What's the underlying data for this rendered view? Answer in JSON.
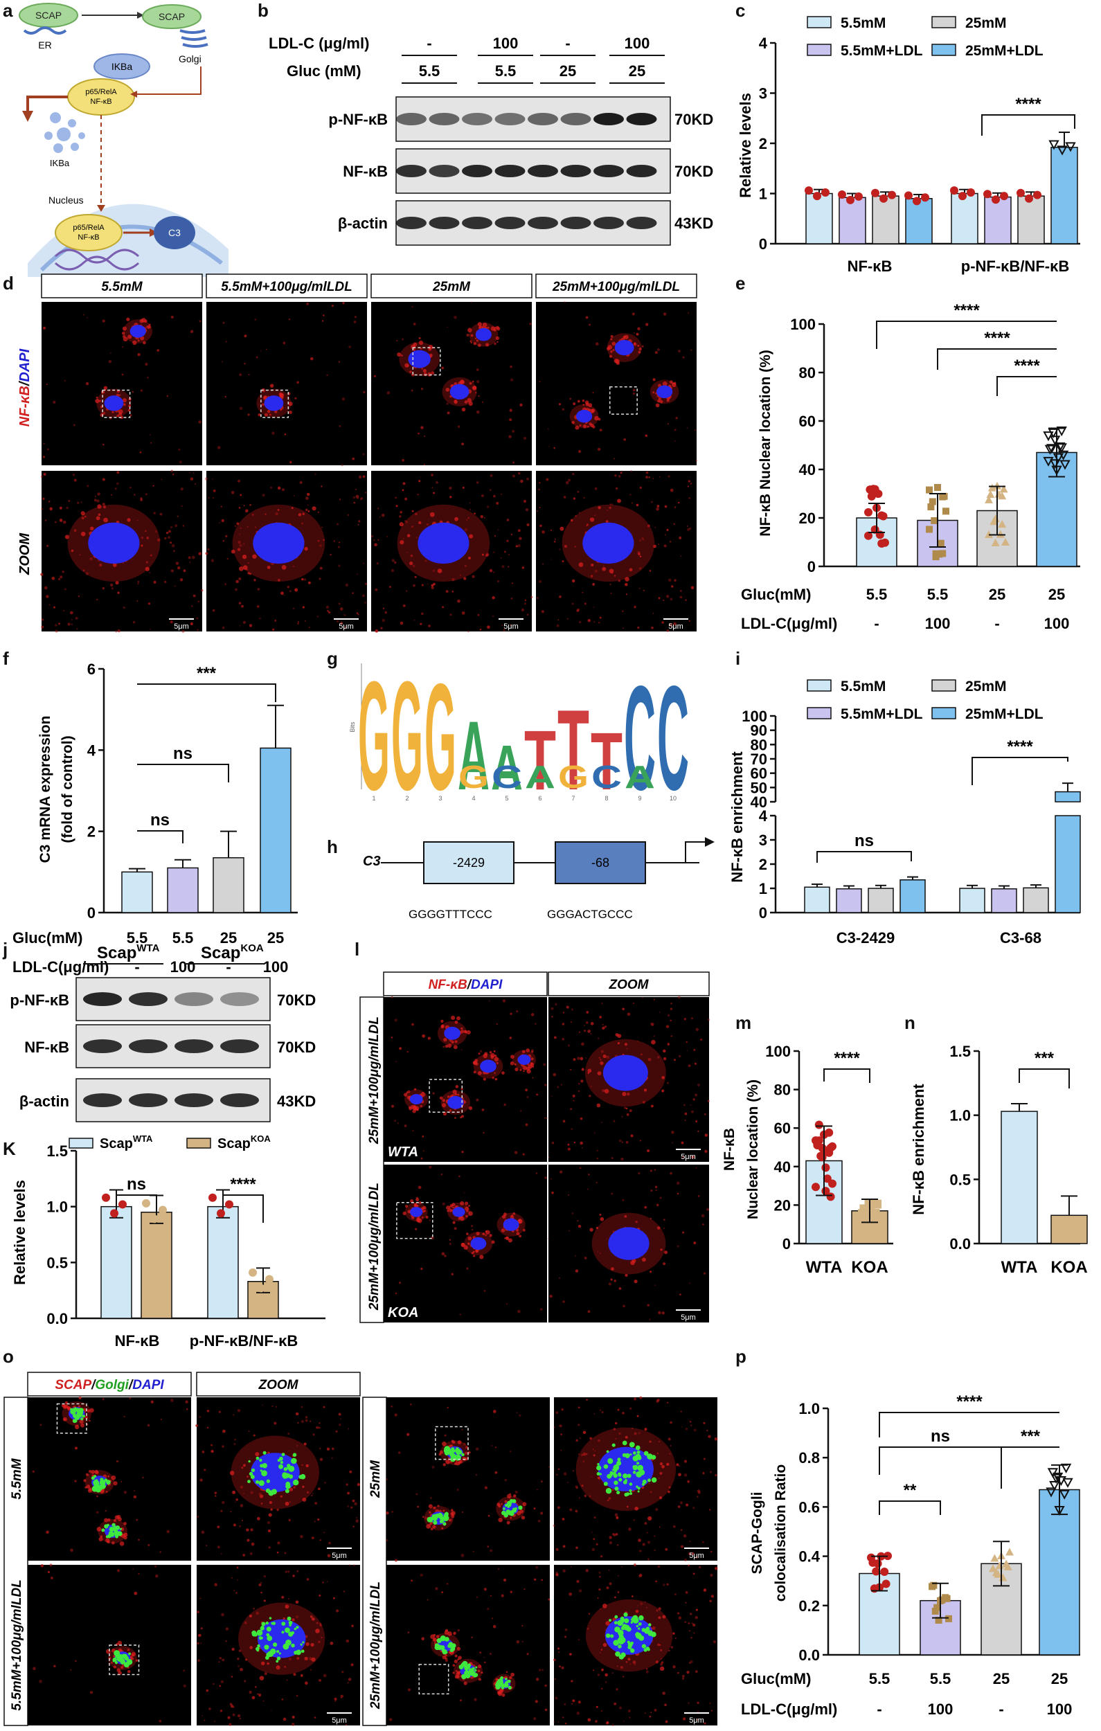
{
  "panel_letters": {
    "a": "a",
    "b": "b",
    "c": "c",
    "d": "d",
    "e": "e",
    "f": "f",
    "g": "g",
    "h": "h",
    "i": "i",
    "j": "j",
    "K": "K",
    "l": "l",
    "m": "m",
    "n": "n",
    "o": "o",
    "p": "p"
  },
  "a": {
    "scap1": "SCAP",
    "scap2": "SCAP",
    "er": "ER",
    "golgi": "Golgi",
    "ikba_top": "IKBa",
    "complex_top": "p65/RelA\nNF-κB",
    "ikba_free": "IKBa",
    "nucleus": "Nucleus",
    "complex_nuc": "p65/RelA\nNF-κB",
    "c3": "C3"
  },
  "b": {
    "row1_label": "LDL-C (μg/ml)",
    "row2_label": "Gluc (mM)",
    "ldl": [
      "-",
      "100",
      "-",
      "100"
    ],
    "gluc": [
      "5.5",
      "5.5",
      "25",
      "25"
    ],
    "blots": [
      "p-NF-κB",
      "NF-κB",
      "β-actin"
    ],
    "sizes": [
      "70KD",
      "70KD",
      "43KD"
    ]
  },
  "c": {
    "ylabel": "Relative levels",
    "legend": [
      "5.5mM",
      "25mM",
      "5.5mM+LDL",
      "25mM+LDL"
    ],
    "groups": [
      "NF-κB",
      "p-NF-κB/NF-κB"
    ],
    "sig": "****",
    "yticks": [
      "0",
      "1",
      "2",
      "3",
      "4"
    ]
  },
  "d": {
    "cols": [
      "5.5mM",
      "5.5mM+100μg/mlLDL",
      "25mM",
      "25mM+100μg/mlLDL"
    ],
    "row1_label_red": "NF-κB",
    "row1_label_blue": "DAPI",
    "row2_label": "ZOOM",
    "scale": "5μm"
  },
  "e": {
    "ylabel": "NF-κB Nuclear location (%)",
    "yticks": [
      "0",
      "20",
      "40",
      "60",
      "80",
      "100"
    ],
    "gluc_label": "Gluc(mM)",
    "ldl_label": "LDL-C(μg/ml)",
    "gluc": [
      "5.5",
      "5.5",
      "25",
      "25"
    ],
    "ldl": [
      "-",
      "100",
      "-",
      "100"
    ],
    "sig": [
      "****",
      "****",
      "****"
    ]
  },
  "f": {
    "ylabel1": "C3 mRNA expression",
    "ylabel2": "(fold of control)",
    "yticks": [
      "0",
      "2",
      "4",
      "6"
    ],
    "gluc_label": "Gluc(mM)",
    "ldl_label": "LDL-C(μg/ml)",
    "gluc": [
      "5.5",
      "5.5",
      "25",
      "25"
    ],
    "ldl": [
      "-",
      "100",
      "-",
      "100"
    ],
    "sig": [
      "ns",
      "ns",
      "***"
    ]
  },
  "g": {
    "motif": [
      "G",
      "G",
      "G",
      "A",
      "A",
      "T",
      "T",
      "T",
      "C",
      "C"
    ],
    "sub": [
      "G",
      "C",
      "A",
      "G",
      "C",
      "A"
    ],
    "bits": "Bits",
    "positions": [
      "1",
      "2",
      "3",
      "4",
      "5",
      "6",
      "7",
      "8",
      "9",
      "10"
    ]
  },
  "h": {
    "gene": "C3",
    "site1": "-2429",
    "site2": "-68",
    "seq1": "GGGGTTTCCC",
    "seq2": "GGGACTGCCC"
  },
  "i": {
    "ylabel": "NF-κB enrichment",
    "legend": [
      "5.5mM",
      "25mM",
      "5.5mM+LDL",
      "25mM+LDL"
    ],
    "groups": [
      "C3-2429",
      "C3-68"
    ],
    "sig": [
      "ns",
      "****"
    ],
    "yticks_low": [
      "0",
      "1",
      "2",
      "3",
      "4"
    ],
    "yticks_high": [
      "40",
      "50",
      "60",
      "70",
      "80",
      "90",
      "100"
    ]
  },
  "j": {
    "group1": "Scap",
    "group1_sup": "WTA",
    "group2": "Scap",
    "group2_sup": "KOA",
    "blots": [
      "p-NF-κB",
      "NF-κB",
      "β-actin"
    ],
    "sizes": [
      "70KD",
      "70KD",
      "43KD"
    ]
  },
  "K": {
    "legend": [
      {
        "name": "Scap",
        "sup": "WTA"
      },
      {
        "name": "Scap",
        "sup": "KOA"
      }
    ],
    "ylabel": "Relative levels",
    "groups": [
      "NF-κB",
      "p-NF-κB/NF-κB"
    ],
    "sig": [
      "ns",
      "****"
    ],
    "yticks": [
      "0.0",
      "0.5",
      "1.0",
      "1.5"
    ]
  },
  "l": {
    "col1_red": "NF-κB",
    "col1_blue": "DAPI",
    "col2": "ZOOM",
    "row_label": "25mM+100μg/mlLDL",
    "row1_tag": "WTA",
    "row2_tag": "KOA",
    "scale": "5μm"
  },
  "m": {
    "ylabel1": "NF-κB",
    "ylabel2": "Nuclear location (%)",
    "yticks": [
      "0",
      "20",
      "40",
      "60",
      "80",
      "100"
    ],
    "cats": [
      "WTA",
      "KOA"
    ],
    "sig": "****"
  },
  "n": {
    "ylabel": "NF-κB enrichment",
    "yticks": [
      "0.0",
      "0.5",
      "1.0",
      "1.5"
    ],
    "cats": [
      "WTA",
      "KOA"
    ],
    "sig": "***"
  },
  "o": {
    "header_red": "SCAP",
    "header_green": "Golgi",
    "header_blue": "DAPI",
    "zoom": "ZOOM",
    "rows": [
      "5.5mM",
      "5.5mM+100μg/mlLDL"
    ],
    "rows_right": [
      "25mM",
      "25mM+100μg/mlLDL"
    ],
    "scale": "5μm"
  },
  "p": {
    "ylabel1": "SCAP-Gogli",
    "ylabel2": "colocalisation Ratio",
    "yticks": [
      "0.0",
      "0.2",
      "0.4",
      "0.6",
      "0.8",
      "1.0"
    ],
    "gluc_label": "Gluc(mM)",
    "ldl_label": "LDL-C(μg/ml)",
    "gluc": [
      "5.5",
      "5.5",
      "25",
      "25"
    ],
    "ldl": [
      "-",
      "100",
      "-",
      "100"
    ],
    "sig": [
      "****",
      "ns",
      "***",
      "**"
    ]
  },
  "colors": {
    "c1": "#cfe8f5",
    "c2": "#c9c3f0",
    "c3": "#d4d4d4",
    "c4": "#7ec0ee",
    "red": "#c0201e",
    "tan": "#d4b483",
    "micro_bg": "#000000"
  },
  "chart_data": [
    {
      "type": "bar",
      "panel": "c",
      "categories": [
        "NF-κB",
        "p-NF-κB/NF-κB"
      ],
      "series": [
        {
          "name": "5.5mM",
          "values": [
            1.0,
            1.0
          ]
        },
        {
          "name": "5.5mM+LDL",
          "values": [
            0.92,
            0.93
          ]
        },
        {
          "name": "25mM",
          "values": [
            0.95,
            0.95
          ]
        },
        {
          "name": "25mM+LDL",
          "values": [
            0.9,
            1.92
          ]
        }
      ],
      "ylabel": "Relative levels",
      "ylim": [
        0,
        4
      ]
    },
    {
      "type": "bar",
      "panel": "e",
      "categories": [
        "5.5/-",
        "5.5/100",
        "25/-",
        "25/100"
      ],
      "values": [
        20,
        19,
        23,
        47
      ],
      "errors": [
        6,
        11,
        10,
        10
      ],
      "ylabel": "NF-κB Nuclear location (%)",
      "ylim": [
        0,
        100
      ]
    },
    {
      "type": "bar",
      "panel": "f",
      "categories": [
        "5.5/-",
        "5.5/100",
        "25/-",
        "25/100"
      ],
      "values": [
        1.0,
        1.1,
        1.35,
        4.05
      ],
      "errors": [
        0.08,
        0.2,
        0.65,
        1.05
      ],
      "ylabel": "C3 mRNA expression (fold of control)",
      "ylim": [
        0,
        6
      ]
    },
    {
      "type": "bar",
      "panel": "i",
      "categories": [
        "C3-2429",
        "C3-68"
      ],
      "series": [
        {
          "name": "5.5mM",
          "values": [
            1.05,
            1.0
          ]
        },
        {
          "name": "5.5mM+LDL",
          "values": [
            0.98,
            0.98
          ]
        },
        {
          "name": "25mM",
          "values": [
            1.0,
            1.02
          ]
        },
        {
          "name": "25mM+LDL",
          "values": [
            1.35,
            47
          ]
        }
      ],
      "ylabel": "NF-κB enrichment",
      "ylim": [
        0,
        100
      ]
    },
    {
      "type": "bar",
      "panel": "K",
      "categories": [
        "NF-κB",
        "p-NF-κB/NF-κB"
      ],
      "series": [
        {
          "name": "ScapWTA",
          "values": [
            1.0,
            1.0
          ]
        },
        {
          "name": "ScapKOA",
          "values": [
            0.95,
            0.33
          ]
        }
      ],
      "ylabel": "Relative levels",
      "ylim": [
        0,
        1.5
      ]
    },
    {
      "type": "bar",
      "panel": "m",
      "categories": [
        "WTA",
        "KOA"
      ],
      "values": [
        43,
        17
      ],
      "errors": [
        18,
        6
      ],
      "ylim": [
        0,
        100
      ]
    },
    {
      "type": "bar",
      "panel": "n",
      "categories": [
        "WTA",
        "KOA"
      ],
      "values": [
        1.03,
        0.22
      ],
      "errors": [
        0.06,
        0.15
      ],
      "ylabel": "NF-κB enrichment",
      "ylim": [
        0,
        1.5
      ]
    },
    {
      "type": "bar",
      "panel": "p",
      "categories": [
        "5.5/-",
        "5.5/100",
        "25/-",
        "25/100"
      ],
      "values": [
        0.33,
        0.22,
        0.37,
        0.67
      ],
      "errors": [
        0.07,
        0.07,
        0.09,
        0.1
      ],
      "ylabel": "SCAP-Gogli colocalisation Ratio",
      "ylim": [
        0,
        1.0
      ]
    }
  ]
}
